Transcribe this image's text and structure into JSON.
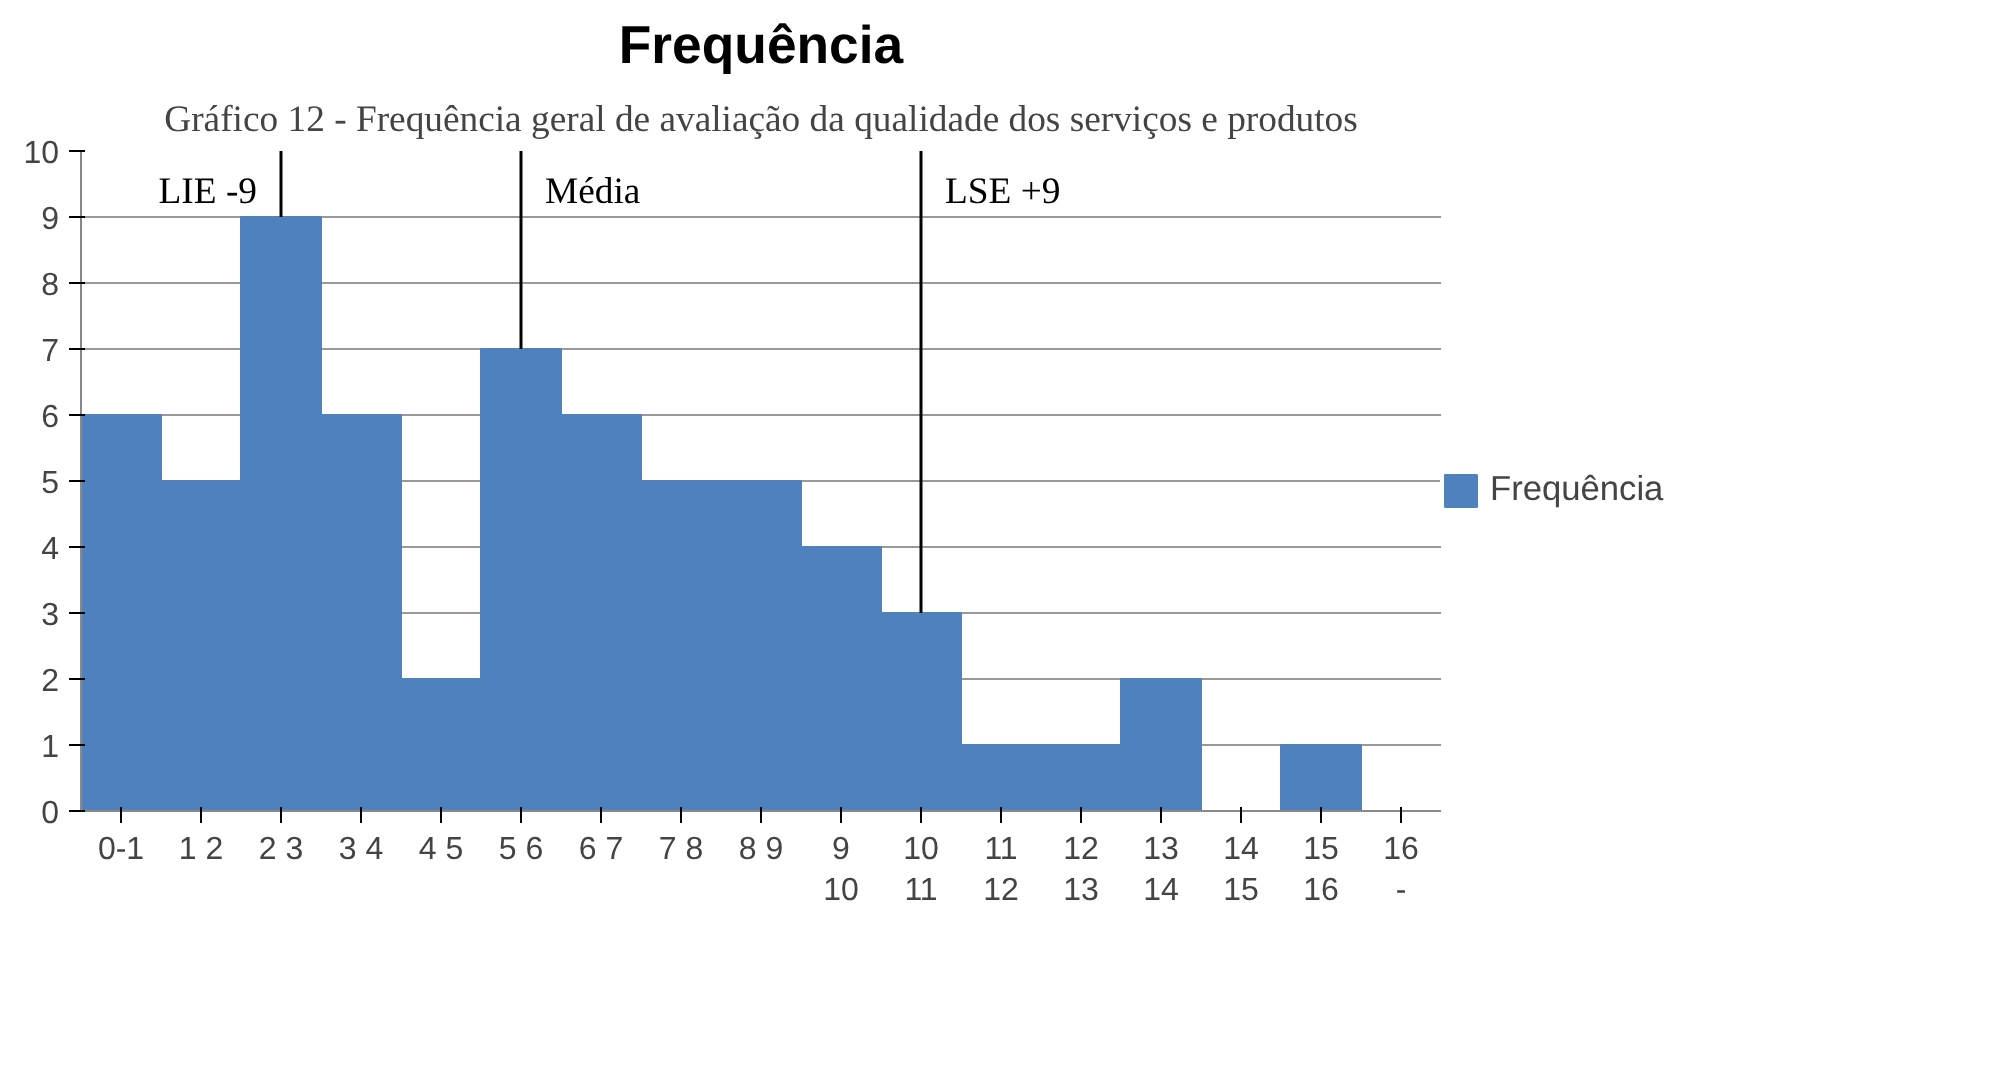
{
  "chart_data": {
    "type": "bar",
    "title": "Gráfico 12 - Frequência geral de avaliação da qualidade dos serviços e produtos",
    "subtitle": "Frequência",
    "categories": [
      "0-1",
      "1 2",
      "2 3",
      "3 4",
      "4 5",
      "5 6",
      "6 7",
      "7 8",
      "8 9",
      "9\n10",
      "10\n11",
      "11\n12",
      "12\n13",
      "13\n14",
      "14\n15",
      "15\n16",
      "16\n-"
    ],
    "series": [
      {
        "name": "Frequência",
        "color": "#4f81bd",
        "values": [
          6,
          5,
          9,
          6,
          2,
          7,
          6,
          5,
          5,
          4,
          3,
          1,
          1,
          2,
          0,
          1,
          0
        ]
      }
    ],
    "ylim": [
      0,
      10
    ],
    "yticks": [
      0,
      1,
      2,
      3,
      4,
      5,
      6,
      7,
      8,
      9,
      10
    ],
    "grid": "y",
    "legend": "right",
    "annotations": [
      {
        "text": "LIE -9",
        "x": "2 3",
        "y": 9
      },
      {
        "text": "Média",
        "x": "5 6",
        "y": 7
      },
      {
        "text": "LSE +9",
        "x": "10\n11",
        "y": 3
      }
    ]
  }
}
